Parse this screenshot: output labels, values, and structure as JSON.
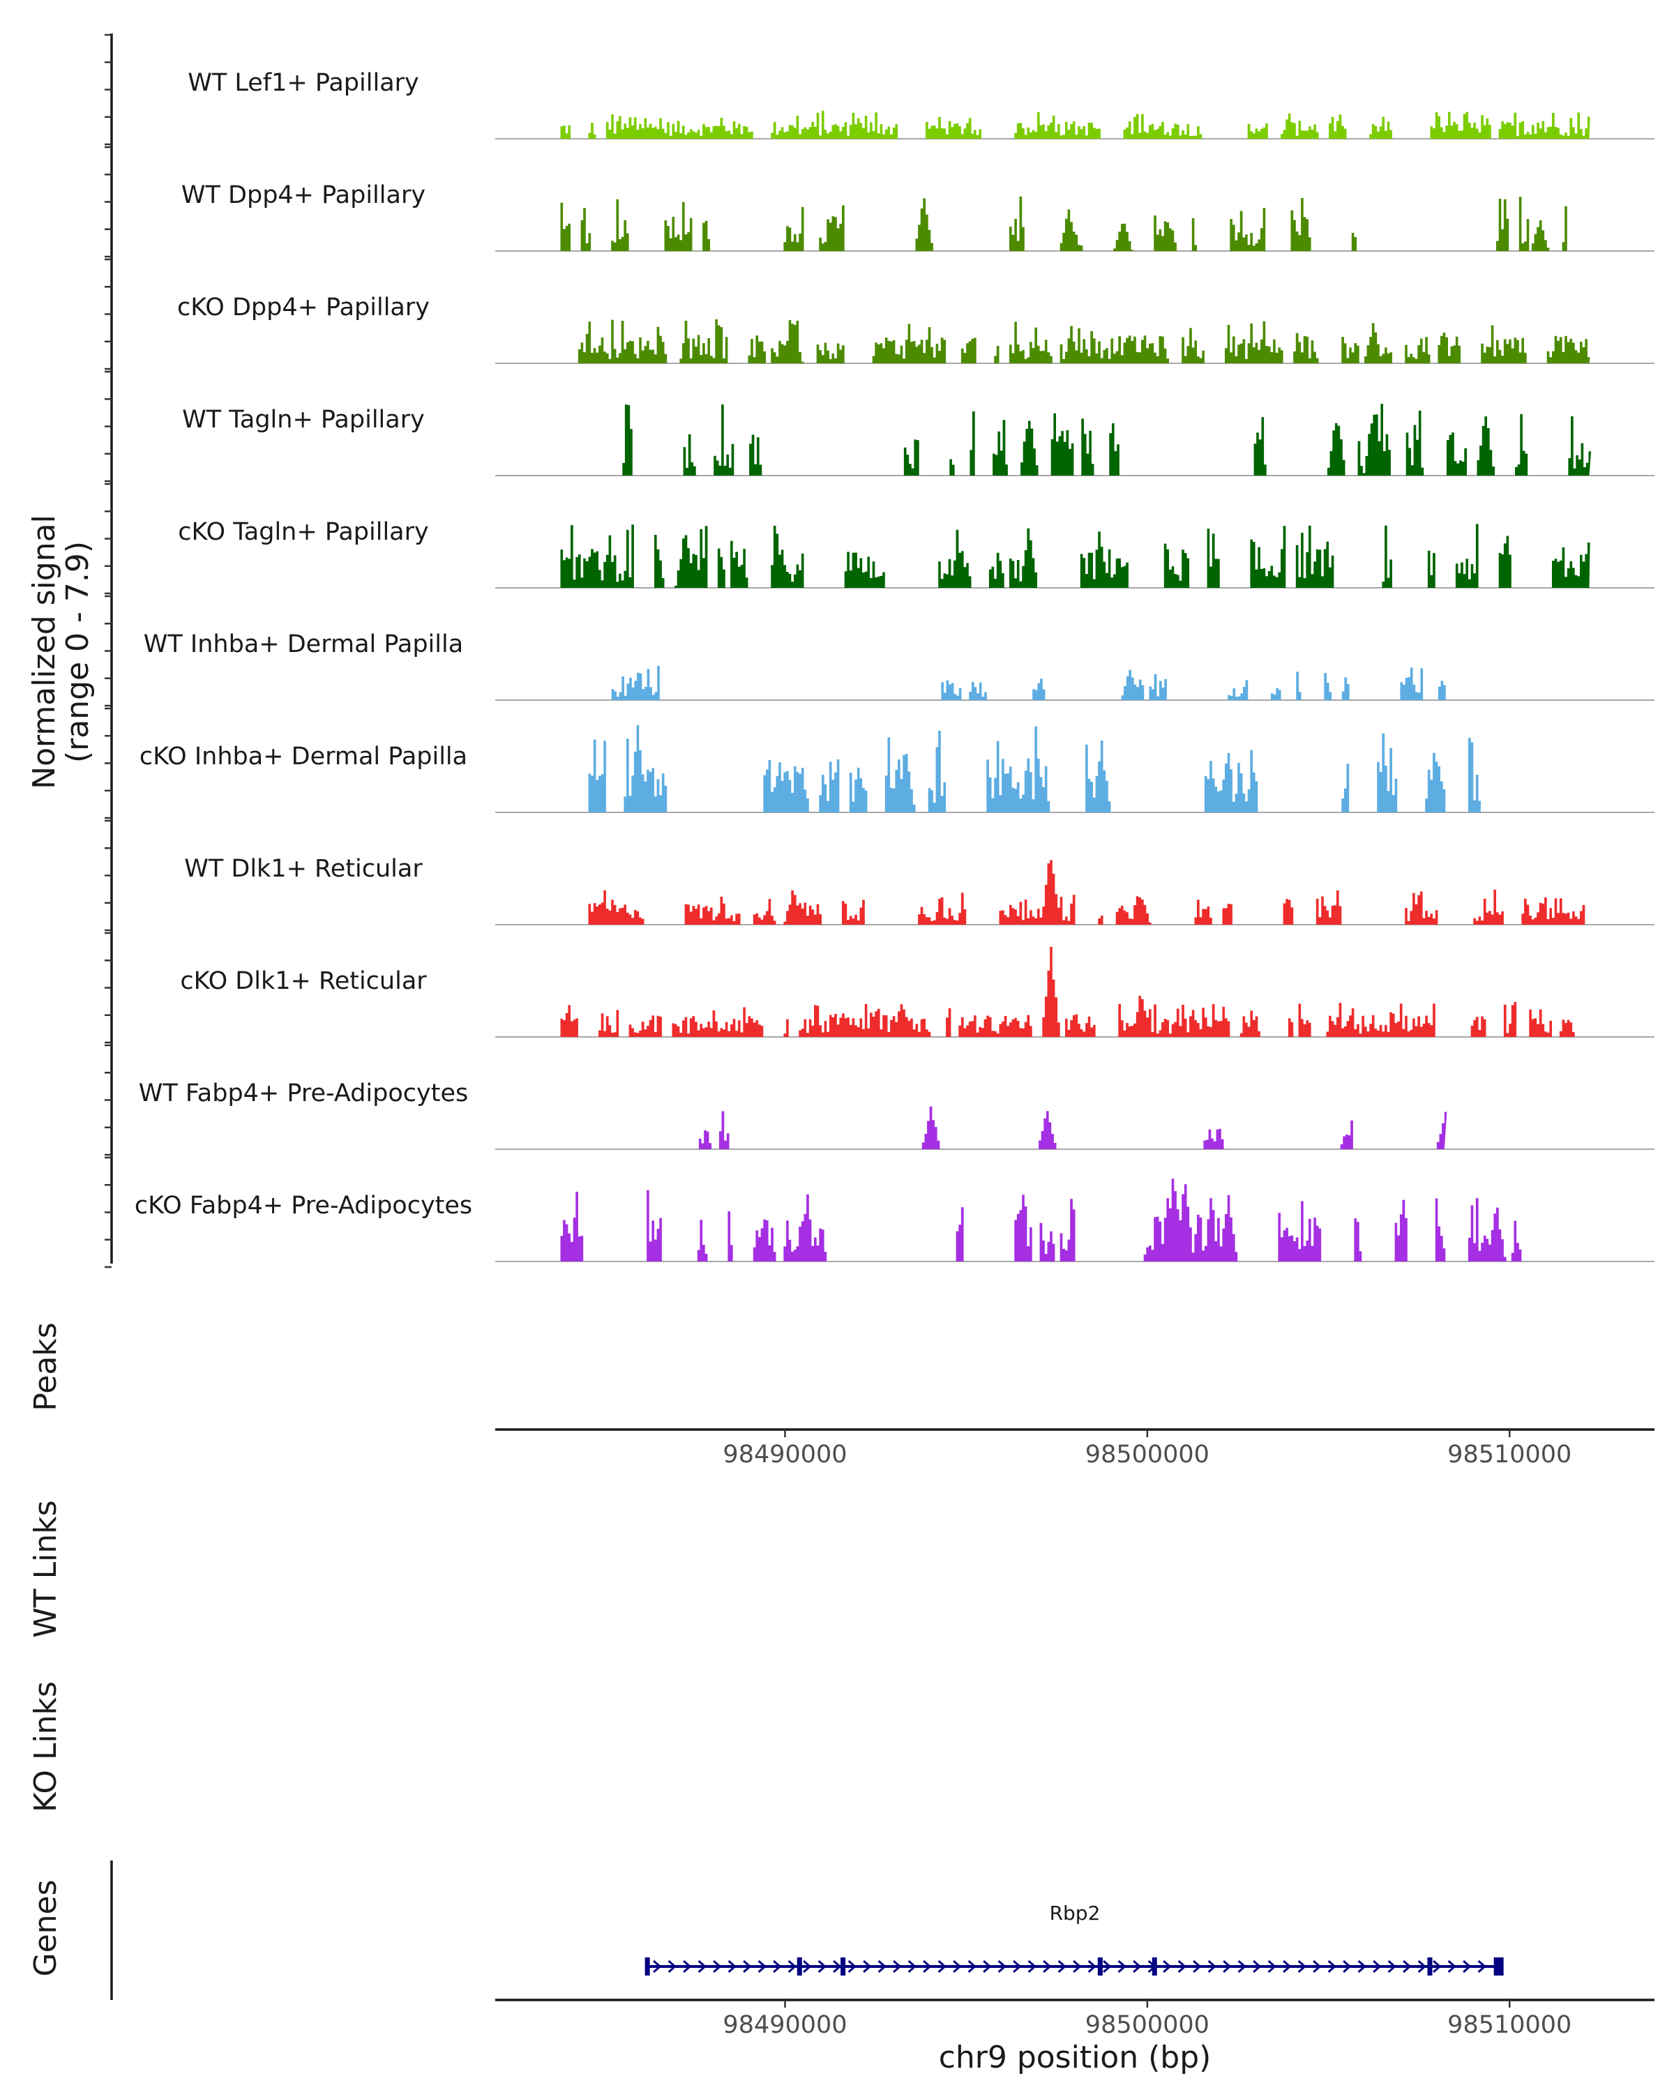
{
  "chart_data": {
    "type": "area",
    "title": "",
    "chromosome": "chr9",
    "xlabel": "chr9 position (bp)",
    "ylabel": "Normalized signal",
    "ylabel_range": "(range 0 - 7.9)",
    "signal_range": [
      0,
      7.9
    ],
    "xlim": [
      98482000,
      98514000
    ],
    "xticks": [
      98490000,
      98500000,
      98510000
    ],
    "xtick_labels": [
      "98490000",
      "98500000",
      "98510000"
    ],
    "tracks": [
      {
        "name": "WT Lef1+ Papillary",
        "color": "#7CCD00",
        "density": 0.72,
        "scale": 0.18,
        "start": 98483800,
        "end": 98512200,
        "peaks": [
          [
            98492000,
            0.22
          ],
          [
            98508000,
            0.2
          ]
        ]
      },
      {
        "name": "WT Dpp4+ Papillary",
        "color": "#4C8B00",
        "density": 0.3,
        "scale": 0.35,
        "start": 98483800,
        "end": 98512200,
        "peaks": [
          [
            98493800,
            0.6
          ],
          [
            98497800,
            0.45
          ],
          [
            98499300,
            0.35
          ],
          [
            98510800,
            0.35
          ]
        ]
      },
      {
        "name": "cKO Dpp4+ Papillary",
        "color": "#4C8B00",
        "density": 0.68,
        "scale": 0.28,
        "start": 98483800,
        "end": 98512200,
        "peaks": [
          [
            98490200,
            0.45
          ],
          [
            98506200,
            0.45
          ]
        ]
      },
      {
        "name": "WT Tagln+ Papillary",
        "color": "#006400",
        "density": 0.22,
        "scale": 0.45,
        "start": 98485300,
        "end": 98512200,
        "peaks": [
          [
            98496700,
            0.7
          ],
          [
            98505200,
            0.7
          ],
          [
            98506200,
            0.75
          ],
          [
            98509300,
            0.7
          ]
        ]
      },
      {
        "name": "cKO Tagln+ Papillary",
        "color": "#006400",
        "density": 0.55,
        "scale": 0.4,
        "start": 98483800,
        "end": 98512200,
        "peaks": [
          [
            98487200,
            0.6
          ],
          [
            98496700,
            0.65
          ],
          [
            98512200,
            0.7
          ]
        ]
      },
      {
        "name": "WT Inhba+ Dermal Papilla",
        "color": "#5DADE2",
        "density": 0.22,
        "scale": 0.22,
        "start": 98484300,
        "end": 98509200,
        "peaks": [
          [
            98499500,
            0.35
          ],
          [
            98507200,
            0.25
          ]
        ]
      },
      {
        "name": "cKO Inhba+ Dermal Papilla",
        "color": "#5DADE2",
        "density": 0.38,
        "scale": 0.55,
        "start": 98483800,
        "end": 98509200,
        "peaks": [
          [
            98485900,
            0.95
          ],
          [
            98493300,
            0.75
          ],
          [
            98498700,
            0.75
          ],
          [
            98490000,
            0.55
          ]
        ]
      },
      {
        "name": "WT Dlk1+ Reticular",
        "color": "#EE2C2C",
        "density": 0.4,
        "scale": 0.22,
        "start": 98483800,
        "end": 98512200,
        "peaks": [
          [
            98497300,
            0.8
          ],
          [
            98490200,
            0.4
          ],
          [
            98499800,
            0.35
          ]
        ]
      },
      {
        "name": "cKO Dlk1+ Reticular",
        "color": "#EE2C2C",
        "density": 0.62,
        "scale": 0.22,
        "start": 98483800,
        "end": 98512200,
        "peaks": [
          [
            98497300,
            0.95
          ],
          [
            98499800,
            0.5
          ],
          [
            98493200,
            0.4
          ]
        ]
      },
      {
        "name": "WT Fabp4+ Pre-Adipocytes",
        "color": "#A52FE3",
        "density": 0.12,
        "scale": 0.25,
        "start": 98486500,
        "end": 98508200,
        "peaks": [
          [
            98494000,
            0.45
          ],
          [
            98497200,
            0.45
          ],
          [
            98508200,
            0.4
          ]
        ]
      },
      {
        "name": "cKO Fabp4+ Pre-Adipocytes",
        "color": "#A52FE3",
        "density": 0.3,
        "scale": 0.45,
        "start": 98483800,
        "end": 98511200,
        "peaks": [
          [
            98500700,
            0.95
          ],
          [
            98501000,
            0.9
          ],
          [
            98502200,
            0.75
          ],
          [
            98509600,
            0.65
          ]
        ]
      }
    ],
    "panels": {
      "peaks": "Peaks",
      "wt_links": "WT Links",
      "ko_links": "KO Links",
      "genes": "Genes"
    },
    "gene": {
      "name": "Rbp2",
      "start": 98486200,
      "end": 98509800,
      "strand": "+",
      "exons": [
        98486200,
        98490400,
        98491600,
        98498700,
        98500200,
        98507800,
        98509700
      ],
      "color": "#000080"
    }
  }
}
